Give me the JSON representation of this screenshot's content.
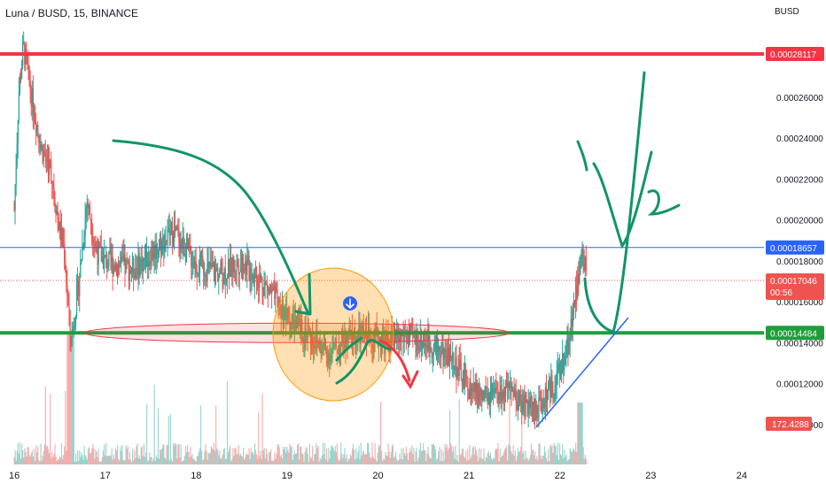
{
  "title": "Luna / BUSD, 15, BINANCE",
  "currency": "BUSD",
  "chart_data": {
    "type": "candlestick",
    "symbol": "Luna / BUSD",
    "interval": "15",
    "exchange": "BINANCE",
    "ylim": [
      9.84e-05,
      0.0002945
    ],
    "y_ticks": [
      "0.00026000",
      "0.00024000",
      "0.00022000",
      "0.00020000",
      "0.00018000",
      "0.00016000",
      "0.00014000",
      "0.00012000",
      "0.00010000"
    ],
    "x_ticks": [
      "16",
      "17",
      "18",
      "19",
      "20",
      "21",
      "22",
      "23",
      "24"
    ],
    "price_levels": [
      {
        "label": "0.00028117",
        "value": 0.00028117,
        "color": "#f23645"
      },
      {
        "label": "0.00018657",
        "value": 0.00018657,
        "color": "#2962ff"
      },
      {
        "label": "0.00014484",
        "value": 0.00014484,
        "color": "#1e9e3a"
      }
    ],
    "last_price": {
      "label": "0.00017046",
      "value": 0.00017046,
      "countdown": "00:56",
      "color": "#ef5350"
    },
    "volume_label": "172.4288",
    "approx_close_series": [
      {
        "day": 16.0,
        "price": 0.000205
      },
      {
        "day": 16.05,
        "price": 0.000262
      },
      {
        "day": 16.1,
        "price": 0.000285
      },
      {
        "day": 16.2,
        "price": 0.000258
      },
      {
        "day": 16.3,
        "price": 0.000235
      },
      {
        "day": 16.4,
        "price": 0.000225
      },
      {
        "day": 16.5,
        "price": 0.000195
      },
      {
        "day": 16.55,
        "price": 0.000186
      },
      {
        "day": 16.62,
        "price": 0.00014
      },
      {
        "day": 16.7,
        "price": 0.000165
      },
      {
        "day": 16.8,
        "price": 0.00021
      },
      {
        "day": 16.9,
        "price": 0.000185
      },
      {
        "day": 17.0,
        "price": 0.00018
      },
      {
        "day": 17.15,
        "price": 0.000178
      },
      {
        "day": 17.3,
        "price": 0.000176
      },
      {
        "day": 17.5,
        "price": 0.000183
      },
      {
        "day": 17.75,
        "price": 0.000195
      },
      {
        "day": 18.0,
        "price": 0.000178
      },
      {
        "day": 18.3,
        "price": 0.000174
      },
      {
        "day": 18.5,
        "price": 0.00018
      },
      {
        "day": 18.8,
        "price": 0.000166
      },
      {
        "day": 19.0,
        "price": 0.000152
      },
      {
        "day": 19.2,
        "price": 0.000145
      },
      {
        "day": 19.45,
        "price": 0.000135
      },
      {
        "day": 19.7,
        "price": 0.000142
      },
      {
        "day": 19.9,
        "price": 0.000144
      },
      {
        "day": 20.1,
        "price": 0.00014
      },
      {
        "day": 20.3,
        "price": 0.000143
      },
      {
        "day": 20.55,
        "price": 0.00014
      },
      {
        "day": 20.8,
        "price": 0.000133
      },
      {
        "day": 21.0,
        "price": 0.000118
      },
      {
        "day": 21.2,
        "price": 0.000112
      },
      {
        "day": 21.4,
        "price": 0.000116
      },
      {
        "day": 21.6,
        "price": 0.00011
      },
      {
        "day": 21.75,
        "price": 0.000107
      },
      {
        "day": 21.9,
        "price": 0.000118
      },
      {
        "day": 22.0,
        "price": 0.000125
      },
      {
        "day": 22.1,
        "price": 0.000142
      },
      {
        "day": 22.18,
        "price": 0.000165
      },
      {
        "day": 22.25,
        "price": 0.000185
      },
      {
        "day": 22.3,
        "price": 0.00017
      }
    ],
    "annotations": {
      "zone_ellipse_price": 0.00014484,
      "marker_icon": "arrow-down-icon"
    },
    "grid": false
  }
}
